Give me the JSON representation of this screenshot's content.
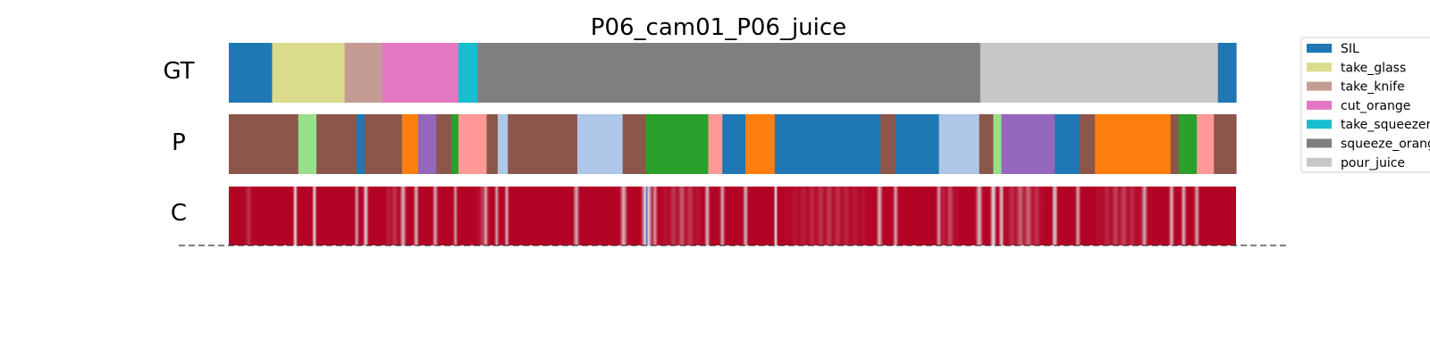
{
  "chart_data": {
    "type": "segmentation",
    "title": "P06_cam01_P06_juice",
    "x_range": [
      0,
      100
    ],
    "rows": [
      {
        "label": "GT"
      },
      {
        "label": "P"
      },
      {
        "label": "C"
      }
    ],
    "legend": {
      "placement": "top-right",
      "entries": [
        {
          "name": "SIL",
          "color": "#1f77b4"
        },
        {
          "name": "take_glass",
          "color": "#dbdb8d"
        },
        {
          "name": "take_knife",
          "color": "#c49c94"
        },
        {
          "name": "cut_orange",
          "color": "#e377c2"
        },
        {
          "name": "take_squeezer",
          "color": "#17becf"
        },
        {
          "name": "squeeze_orange",
          "color": "#7f7f7f"
        },
        {
          "name": "pour_juice",
          "color": "#c7c7c7"
        }
      ]
    },
    "gt_segments": [
      {
        "start": 0.0,
        "end": 4.3,
        "color": "#1f77b4"
      },
      {
        "start": 4.3,
        "end": 11.5,
        "color": "#dbdb8d"
      },
      {
        "start": 11.5,
        "end": 15.2,
        "color": "#c49c94"
      },
      {
        "start": 15.2,
        "end": 22.8,
        "color": "#e377c2"
      },
      {
        "start": 22.8,
        "end": 24.7,
        "color": "#17becf"
      },
      {
        "start": 24.7,
        "end": 74.6,
        "color": "#7f7f7f"
      },
      {
        "start": 74.6,
        "end": 98.2,
        "color": "#c7c7c7"
      },
      {
        "start": 98.2,
        "end": 100.0,
        "color": "#1f77b4"
      }
    ],
    "p_segments": [
      {
        "start": 0.0,
        "end": 6.9,
        "color": "#8c564b"
      },
      {
        "start": 6.9,
        "end": 8.7,
        "color": "#98df8a"
      },
      {
        "start": 8.7,
        "end": 12.7,
        "color": "#8c564b"
      },
      {
        "start": 12.7,
        "end": 13.5,
        "color": "#1f77b4"
      },
      {
        "start": 13.5,
        "end": 17.2,
        "color": "#8c564b"
      },
      {
        "start": 17.2,
        "end": 18.8,
        "color": "#ff7f0e"
      },
      {
        "start": 18.8,
        "end": 20.6,
        "color": "#9467bd"
      },
      {
        "start": 20.6,
        "end": 22.1,
        "color": "#8c564b"
      },
      {
        "start": 22.1,
        "end": 22.8,
        "color": "#2ca02c"
      },
      {
        "start": 22.8,
        "end": 25.6,
        "color": "#ff9896"
      },
      {
        "start": 25.6,
        "end": 26.7,
        "color": "#8c564b"
      },
      {
        "start": 26.7,
        "end": 27.7,
        "color": "#aec7e8"
      },
      {
        "start": 27.7,
        "end": 34.6,
        "color": "#8c564b"
      },
      {
        "start": 34.6,
        "end": 39.1,
        "color": "#aec7e8"
      },
      {
        "start": 39.1,
        "end": 41.4,
        "color": "#8c564b"
      },
      {
        "start": 41.4,
        "end": 47.6,
        "color": "#2ca02c"
      },
      {
        "start": 47.6,
        "end": 49.0,
        "color": "#ff9896"
      },
      {
        "start": 49.0,
        "end": 51.3,
        "color": "#1f77b4"
      },
      {
        "start": 51.3,
        "end": 54.2,
        "color": "#ff7f0e"
      },
      {
        "start": 54.2,
        "end": 64.7,
        "color": "#1f77b4"
      },
      {
        "start": 64.7,
        "end": 66.2,
        "color": "#8c564b"
      },
      {
        "start": 66.2,
        "end": 70.5,
        "color": "#1f77b4"
      },
      {
        "start": 70.5,
        "end": 74.5,
        "color": "#aec7e8"
      },
      {
        "start": 74.5,
        "end": 75.9,
        "color": "#8c564b"
      },
      {
        "start": 75.9,
        "end": 76.7,
        "color": "#98df8a"
      },
      {
        "start": 76.7,
        "end": 82.0,
        "color": "#9467bd"
      },
      {
        "start": 82.0,
        "end": 84.5,
        "color": "#1f77b4"
      },
      {
        "start": 84.5,
        "end": 86.0,
        "color": "#8c564b"
      },
      {
        "start": 86.0,
        "end": 93.5,
        "color": "#ff7f0e"
      },
      {
        "start": 93.5,
        "end": 94.3,
        "color": "#8c564b"
      },
      {
        "start": 94.3,
        "end": 96.1,
        "color": "#2ca02c"
      },
      {
        "start": 96.1,
        "end": 97.8,
        "color": "#ff9896"
      },
      {
        "start": 97.8,
        "end": 100.0,
        "color": "#8c564b"
      }
    ],
    "c_row": {
      "colormap": "coolwarm",
      "base_color": "#b40426",
      "mid_color": "#dcdddd",
      "low_color": "#3b4cc0",
      "dips": [
        {
          "x": 6.6,
          "depth": 0.75,
          "width": 0.25
        },
        {
          "x": 8.5,
          "depth": 0.7,
          "width": 0.25
        },
        {
          "x": 12.7,
          "depth": 0.55,
          "width": 0.25
        },
        {
          "x": 13.6,
          "depth": 0.7,
          "width": 0.3
        },
        {
          "x": 17.3,
          "depth": 0.6,
          "width": 0.35
        },
        {
          "x": 18.6,
          "depth": 0.6,
          "width": 0.3
        },
        {
          "x": 20.5,
          "depth": 0.55,
          "width": 0.3
        },
        {
          "x": 22.5,
          "depth": 0.5,
          "width": 0.25
        },
        {
          "x": 25.5,
          "depth": 0.55,
          "width": 0.3
        },
        {
          "x": 26.6,
          "depth": 0.55,
          "width": 0.25
        },
        {
          "x": 27.6,
          "depth": 0.6,
          "width": 0.25
        },
        {
          "x": 34.5,
          "depth": 0.55,
          "width": 0.35
        },
        {
          "x": 39.2,
          "depth": 0.6,
          "width": 0.4
        },
        {
          "x": 41.5,
          "depth": 0.95,
          "width": 0.6
        },
        {
          "x": 42.3,
          "depth": 0.5,
          "width": 0.3
        },
        {
          "x": 47.5,
          "depth": 0.6,
          "width": 0.3
        },
        {
          "x": 49.0,
          "depth": 0.55,
          "width": 0.3
        },
        {
          "x": 51.3,
          "depth": 0.6,
          "width": 0.3
        },
        {
          "x": 54.3,
          "depth": 0.85,
          "width": 0.2
        },
        {
          "x": 64.6,
          "depth": 0.6,
          "width": 0.35
        },
        {
          "x": 66.2,
          "depth": 0.55,
          "width": 0.3
        },
        {
          "x": 70.5,
          "depth": 0.5,
          "width": 0.3
        },
        {
          "x": 74.5,
          "depth": 0.6,
          "width": 0.4
        },
        {
          "x": 75.9,
          "depth": 0.75,
          "width": 0.35
        },
        {
          "x": 76.7,
          "depth": 0.65,
          "width": 0.3
        },
        {
          "x": 82.0,
          "depth": 0.8,
          "width": 0.3
        },
        {
          "x": 84.3,
          "depth": 0.55,
          "width": 0.3
        },
        {
          "x": 90.9,
          "depth": 0.55,
          "width": 0.35
        },
        {
          "x": 93.6,
          "depth": 0.6,
          "width": 0.3
        },
        {
          "x": 94.8,
          "depth": 0.6,
          "width": 0.3
        },
        {
          "x": 96.1,
          "depth": 0.55,
          "width": 0.3
        }
      ],
      "soft_bands": [
        {
          "start": 1.5,
          "end": 2.5,
          "depth": 0.12
        },
        {
          "start": 15.5,
          "end": 17.0,
          "depth": 0.18
        },
        {
          "start": 24.5,
          "end": 26.0,
          "depth": 0.15
        },
        {
          "start": 43.0,
          "end": 47.0,
          "depth": 0.22
        },
        {
          "start": 55.0,
          "end": 64.0,
          "depth": 0.14
        },
        {
          "start": 70.5,
          "end": 72.5,
          "depth": 0.2
        },
        {
          "start": 77.0,
          "end": 81.0,
          "depth": 0.3
        },
        {
          "start": 86.0,
          "end": 91.0,
          "depth": 0.18
        }
      ]
    }
  }
}
